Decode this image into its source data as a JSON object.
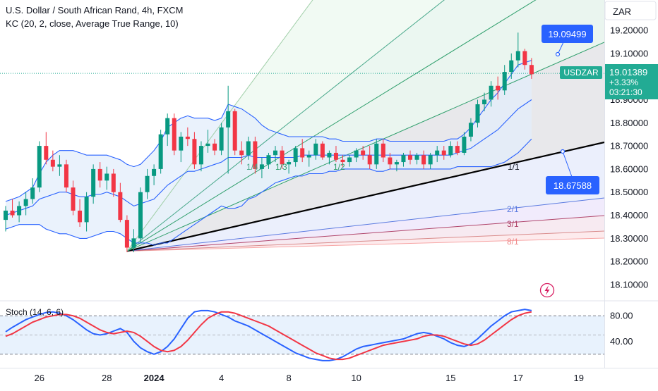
{
  "header": {
    "title": "U.S. Dollar / South African Rand, 4h, FXCM",
    "indicator": "KC (20, 2, close, Average True Range, 10)"
  },
  "currency_label": "ZAR",
  "price_axis": {
    "ticks": [
      "19.20000",
      "19.10000",
      "18.90000",
      "18.80000",
      "18.70000",
      "18.60000",
      "18.50000",
      "18.40000",
      "18.30000",
      "18.20000",
      "18.10000"
    ]
  },
  "current": {
    "symbol": "USDZAR",
    "price": "19.01389",
    "change": "+3.33%",
    "countdown": "03:21:30"
  },
  "callouts": [
    {
      "text": "19.09499"
    },
    {
      "text": "18.67588"
    }
  ],
  "fan_labels": [
    "1/4",
    "1/3",
    "1/2",
    "1/1",
    "2/1",
    "3/1",
    "8/1"
  ],
  "stoch": {
    "title": "Stoch (14, 6, 6)",
    "ticks": [
      "80.00",
      "40.00"
    ]
  },
  "time_axis": {
    "labels": [
      "26",
      "28",
      "2024",
      "4",
      "8",
      "10",
      "15",
      "17",
      "19"
    ]
  },
  "colors": {
    "up": "#089981",
    "down": "#f23645",
    "kc_line": "#2962ff",
    "kc_fill": "#e3eefb",
    "stoch_k": "#2962ff",
    "stoch_d": "#f23645",
    "price_badge": "#22ab94",
    "callout": "#2962ff"
  },
  "chart_data": {
    "type": "candlestick",
    "symbol": "USDZAR",
    "timeframe": "4h",
    "ylim": [
      18.05,
      19.28
    ],
    "x_labels": [
      "26",
      "28",
      "2024",
      "4",
      "8",
      "10",
      "15",
      "17",
      "19"
    ],
    "candles": [
      [
        18.38,
        18.44,
        18.33,
        18.42
      ],
      [
        18.42,
        18.47,
        18.39,
        18.4
      ],
      [
        18.4,
        18.46,
        18.37,
        18.44
      ],
      [
        18.44,
        18.5,
        18.4,
        18.47
      ],
      [
        18.47,
        18.56,
        18.45,
        18.52
      ],
      [
        18.52,
        18.72,
        18.5,
        18.7
      ],
      [
        18.7,
        18.76,
        18.62,
        18.64
      ],
      [
        18.64,
        18.68,
        18.59,
        18.61
      ],
      [
        18.61,
        18.66,
        18.57,
        18.62
      ],
      [
        18.62,
        18.64,
        18.5,
        18.52
      ],
      [
        18.52,
        18.55,
        18.4,
        18.42
      ],
      [
        18.42,
        18.47,
        18.35,
        18.37
      ],
      [
        18.37,
        18.5,
        18.33,
        18.48
      ],
      [
        18.48,
        18.62,
        18.45,
        18.6
      ],
      [
        18.6,
        18.63,
        18.52,
        18.55
      ],
      [
        18.55,
        18.61,
        18.51,
        18.58
      ],
      [
        18.58,
        18.6,
        18.48,
        18.5
      ],
      [
        18.5,
        18.54,
        18.37,
        18.38
      ],
      [
        18.38,
        18.4,
        18.24,
        18.26
      ],
      [
        18.26,
        18.34,
        18.24,
        18.3
      ],
      [
        18.3,
        18.52,
        18.28,
        18.5
      ],
      [
        18.5,
        18.6,
        18.47,
        18.57
      ],
      [
        18.57,
        18.62,
        18.53,
        18.6
      ],
      [
        18.6,
        18.77,
        18.58,
        18.75
      ],
      [
        18.75,
        18.84,
        18.7,
        18.82
      ],
      [
        18.82,
        18.84,
        18.66,
        18.68
      ],
      [
        18.68,
        18.76,
        18.63,
        18.74
      ],
      [
        18.74,
        18.78,
        18.7,
        18.73
      ],
      [
        18.73,
        18.76,
        18.6,
        18.62
      ],
      [
        18.62,
        18.72,
        18.59,
        18.7
      ],
      [
        18.7,
        18.77,
        18.67,
        18.71
      ],
      [
        18.71,
        18.73,
        18.66,
        18.68
      ],
      [
        18.68,
        18.8,
        18.66,
        18.78
      ],
      [
        18.78,
        18.96,
        18.58,
        18.85
      ],
      [
        18.85,
        18.86,
        18.66,
        18.68
      ],
      [
        18.68,
        18.72,
        18.62,
        18.66
      ],
      [
        18.66,
        18.74,
        18.64,
        18.72
      ],
      [
        18.72,
        18.74,
        18.58,
        18.6
      ],
      [
        18.6,
        18.65,
        18.56,
        18.62
      ],
      [
        18.62,
        18.67,
        18.6,
        18.66
      ],
      [
        18.66,
        18.7,
        18.63,
        18.68
      ],
      [
        18.68,
        18.7,
        18.6,
        18.62
      ],
      [
        18.62,
        18.64,
        18.58,
        18.63
      ],
      [
        18.63,
        18.7,
        18.61,
        18.69
      ],
      [
        18.69,
        18.73,
        18.63,
        18.65
      ],
      [
        18.65,
        18.68,
        18.61,
        18.66
      ],
      [
        18.66,
        18.73,
        18.64,
        18.71
      ],
      [
        18.71,
        18.72,
        18.64,
        18.65
      ],
      [
        18.65,
        18.68,
        18.62,
        18.67
      ],
      [
        18.67,
        18.7,
        18.63,
        18.64
      ],
      [
        18.64,
        18.66,
        18.61,
        18.63
      ],
      [
        18.63,
        18.66,
        18.61,
        18.65
      ],
      [
        18.65,
        18.69,
        18.63,
        18.68
      ],
      [
        18.68,
        18.7,
        18.64,
        18.66
      ],
      [
        18.66,
        18.7,
        18.6,
        18.62
      ],
      [
        18.62,
        18.73,
        18.6,
        18.71
      ],
      [
        18.71,
        18.73,
        18.63,
        18.65
      ],
      [
        18.65,
        18.67,
        18.6,
        18.62
      ],
      [
        18.62,
        18.64,
        18.59,
        18.63
      ],
      [
        18.63,
        18.67,
        18.61,
        18.66
      ],
      [
        18.66,
        18.68,
        18.62,
        18.64
      ],
      [
        18.64,
        18.67,
        18.62,
        18.66
      ],
      [
        18.66,
        18.68,
        18.6,
        18.62
      ],
      [
        18.62,
        18.67,
        18.6,
        18.66
      ],
      [
        18.66,
        18.7,
        18.63,
        18.68
      ],
      [
        18.68,
        18.7,
        18.64,
        18.66
      ],
      [
        18.66,
        18.72,
        18.65,
        18.7
      ],
      [
        18.7,
        18.72,
        18.66,
        18.67
      ],
      [
        18.67,
        18.76,
        18.66,
        18.74
      ],
      [
        18.74,
        18.82,
        18.72,
        18.8
      ],
      [
        18.8,
        18.9,
        18.78,
        18.88
      ],
      [
        18.88,
        18.93,
        18.85,
        18.9
      ],
      [
        18.9,
        18.98,
        18.87,
        18.96
      ],
      [
        18.96,
        19.0,
        18.9,
        18.94
      ],
      [
        18.94,
        19.05,
        18.92,
        19.02
      ],
      [
        19.02,
        19.1,
        18.99,
        19.07
      ],
      [
        19.07,
        19.19,
        19.04,
        19.11
      ],
      [
        19.11,
        19.12,
        19.03,
        19.05
      ],
      [
        19.05,
        19.08,
        18.99,
        19.01
      ]
    ],
    "keltner_upper": [
      18.46,
      18.47,
      18.48,
      18.5,
      18.52,
      18.58,
      18.63,
      18.66,
      18.68,
      18.68,
      18.68,
      18.67,
      18.66,
      18.66,
      18.66,
      18.66,
      18.65,
      18.64,
      18.62,
      18.61,
      18.62,
      18.65,
      18.68,
      18.72,
      18.78,
      18.8,
      18.82,
      18.83,
      18.82,
      18.82,
      18.82,
      18.81,
      18.82,
      18.88,
      18.87,
      18.86,
      18.84,
      18.82,
      18.79,
      18.77,
      18.76,
      18.75,
      18.74,
      18.74,
      18.74,
      18.74,
      18.74,
      18.74,
      18.73,
      18.73,
      18.72,
      18.72,
      18.72,
      18.72,
      18.72,
      18.73,
      18.73,
      18.72,
      18.72,
      18.72,
      18.72,
      18.72,
      18.72,
      18.72,
      18.72,
      18.72,
      18.73,
      18.73,
      18.75,
      18.78,
      18.82,
      18.86,
      18.9,
      18.93,
      18.97,
      19.01,
      19.05,
      19.06,
      19.07
    ],
    "keltner_middle": [
      18.4,
      18.41,
      18.42,
      18.43,
      18.44,
      18.47,
      18.48,
      18.49,
      18.5,
      18.5,
      18.49,
      18.48,
      18.48,
      18.49,
      18.49,
      18.5,
      18.49,
      18.48,
      18.46,
      18.44,
      18.45,
      18.46,
      18.47,
      18.5,
      18.53,
      18.55,
      18.57,
      18.59,
      18.59,
      18.6,
      18.61,
      18.62,
      18.63,
      18.65,
      18.65,
      18.65,
      18.66,
      18.65,
      18.65,
      18.65,
      18.65,
      18.65,
      18.65,
      18.65,
      18.66,
      18.66,
      18.66,
      18.66,
      18.66,
      18.66,
      18.66,
      18.66,
      18.66,
      18.66,
      18.66,
      18.66,
      18.66,
      18.66,
      18.66,
      18.66,
      18.66,
      18.66,
      18.66,
      18.66,
      18.66,
      18.66,
      18.66,
      18.67,
      18.68,
      18.69,
      18.71,
      18.73,
      18.75,
      18.77,
      18.8,
      18.83,
      18.86,
      18.88,
      18.9
    ],
    "keltner_lower": [
      18.34,
      18.35,
      18.36,
      18.36,
      18.36,
      18.36,
      18.34,
      18.33,
      18.32,
      18.32,
      18.31,
      18.3,
      18.3,
      18.31,
      18.32,
      18.33,
      18.33,
      18.32,
      18.3,
      18.28,
      18.28,
      18.28,
      18.27,
      18.28,
      18.28,
      18.3,
      18.32,
      18.34,
      18.36,
      18.38,
      18.4,
      18.42,
      18.44,
      18.43,
      18.43,
      18.44,
      18.47,
      18.48,
      18.5,
      18.52,
      18.54,
      18.55,
      18.56,
      18.57,
      18.57,
      18.58,
      18.58,
      18.58,
      18.59,
      18.59,
      18.6,
      18.6,
      18.6,
      18.6,
      18.6,
      18.59,
      18.59,
      18.6,
      18.6,
      18.6,
      18.6,
      18.6,
      18.6,
      18.6,
      18.6,
      18.6,
      18.6,
      18.61,
      18.61,
      18.61,
      18.61,
      18.61,
      18.61,
      18.62,
      18.63,
      18.65,
      18.67,
      18.7,
      18.73
    ],
    "gann_fan": {
      "origin_index": 18,
      "origin_price": 18.245,
      "ratios": [
        "8/1",
        "4/1",
        "3/1",
        "2/1",
        "1/1",
        "1/2",
        "1/3",
        "1/4",
        "1/8"
      ]
    },
    "stochastic": {
      "params": "14, 6, 6",
      "ylim": [
        0,
        100
      ],
      "k": [
        55,
        62,
        68,
        74,
        78,
        82,
        85,
        86,
        84,
        80,
        74,
        66,
        58,
        52,
        50,
        52,
        56,
        60,
        54,
        40,
        30,
        24,
        20,
        24,
        32,
        44,
        60,
        76,
        86,
        88,
        88,
        86,
        82,
        78,
        72,
        68,
        64,
        58,
        52,
        46,
        40,
        34,
        28,
        22,
        18,
        14,
        12,
        10,
        10,
        12,
        16,
        22,
        28,
        32,
        34,
        36,
        38,
        40,
        42,
        44,
        48,
        52,
        54,
        52,
        48,
        44,
        38,
        34,
        32,
        36,
        44,
        54,
        64,
        72,
        80,
        86,
        88,
        90,
        88
      ],
      "d": [
        48,
        52,
        58,
        64,
        70,
        74,
        78,
        80,
        82,
        82,
        80,
        76,
        70,
        64,
        58,
        54,
        52,
        54,
        56,
        54,
        48,
        40,
        32,
        26,
        24,
        26,
        32,
        42,
        54,
        66,
        76,
        82,
        86,
        86,
        84,
        80,
        76,
        72,
        68,
        64,
        58,
        52,
        46,
        40,
        34,
        28,
        22,
        18,
        14,
        12,
        12,
        14,
        18,
        22,
        26,
        30,
        34,
        36,
        38,
        40,
        42,
        44,
        48,
        50,
        50,
        48,
        44,
        40,
        36,
        34,
        36,
        42,
        50,
        58,
        66,
        74,
        80,
        84,
        86
      ]
    }
  }
}
